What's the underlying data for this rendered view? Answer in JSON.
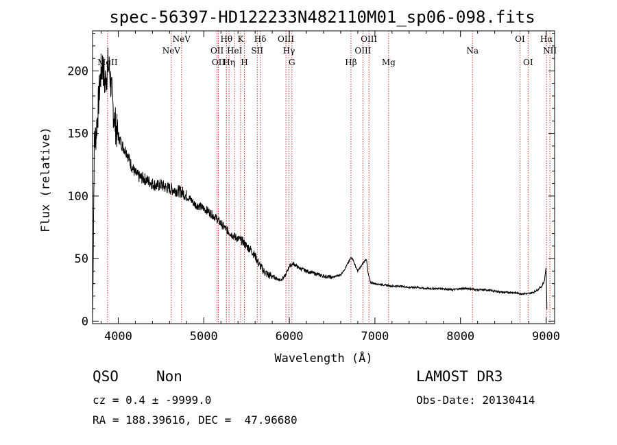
{
  "chart_data": {
    "type": "line",
    "title": "spec-56397-HD122233N482110M01_sp06-098.fits",
    "xlabel": "Wavelength (Å)",
    "ylabel": "Flux (relative)",
    "xlim": [
      3700,
      9100
    ],
    "ylim": [
      -2,
      232
    ],
    "xticks": [
      4000,
      5000,
      6000,
      7000,
      8000,
      9000
    ],
    "yticks": [
      0,
      50,
      100,
      150,
      200
    ],
    "series": [
      {
        "name": "spectrum",
        "x": [
          3700,
          3720,
          3740,
          3760,
          3780,
          3800,
          3820,
          3840,
          3860,
          3880,
          3900,
          3920,
          3940,
          3960,
          3980,
          4000,
          4050,
          4100,
          4150,
          4200,
          4250,
          4300,
          4350,
          4400,
          4450,
          4500,
          4550,
          4600,
          4650,
          4700,
          4750,
          4800,
          4850,
          4900,
          4950,
          5000,
          5050,
          5100,
          5150,
          5200,
          5250,
          5300,
          5350,
          5400,
          5450,
          5500,
          5550,
          5600,
          5650,
          5700,
          5750,
          5800,
          5850,
          5900,
          5950,
          6000,
          6050,
          6100,
          6200,
          6300,
          6400,
          6500,
          6600,
          6650,
          6700,
          6720,
          6740,
          6760,
          6800,
          6850,
          6880,
          6900,
          6920,
          6950,
          7000,
          7100,
          7200,
          7300,
          7400,
          7500,
          7600,
          7700,
          7800,
          7900,
          8000,
          8100,
          8200,
          8300,
          8400,
          8500,
          8600,
          8700,
          8750,
          8800,
          8850,
          8900,
          8950,
          8980,
          9000,
          9010
        ],
        "y": [
          0,
          140,
          150,
          165,
          185,
          200,
          205,
          190,
          195,
          205,
          200,
          185,
          170,
          160,
          152,
          148,
          140,
          135,
          125,
          118,
          115,
          114,
          112,
          110,
          108,
          109,
          107,
          106,
          105,
          104,
          103,
          100,
          97,
          93,
          92,
          90,
          88,
          85,
          82,
          78,
          74,
          71,
          68,
          66,
          64,
          60,
          57,
          52,
          45,
          40,
          37,
          36,
          34,
          33,
          36,
          44,
          46,
          43,
          40,
          38,
          36,
          35,
          37,
          42,
          48,
          51,
          50,
          46,
          40,
          45,
          48,
          50,
          38,
          31,
          30,
          29,
          28,
          28,
          27,
          27,
          26,
          26,
          26,
          25,
          26,
          26,
          25,
          25,
          24,
          23,
          23,
          22,
          22,
          22,
          23,
          25,
          28,
          32,
          43,
          10
        ]
      }
    ],
    "emission_lines": [
      {
        "label": "MgII",
        "wavelength": 3875,
        "row": 3
      },
      {
        "label": "NeV",
        "wavelength": 4620,
        "row": 2
      },
      {
        "label": "NeV",
        "wavelength": 4740,
        "row": 1
      },
      {
        "label": "OII",
        "wavelength": 5155,
        "row": 2
      },
      {
        "label": "OII",
        "wavelength": 5170,
        "row": 3
      },
      {
        "label": "Hθ",
        "wavelength": 5265,
        "row": 1
      },
      {
        "label": "Hη",
        "wavelength": 5295,
        "row": 3
      },
      {
        "label": "HeI",
        "wavelength": 5360,
        "row": 2
      },
      {
        "label": "K",
        "wavelength": 5430,
        "row": 1
      },
      {
        "label": "H",
        "wavelength": 5475,
        "row": 3
      },
      {
        "label": "SII",
        "wavelength": 5625,
        "row": 2
      },
      {
        "label": "Hδ",
        "wavelength": 5660,
        "row": 1
      },
      {
        "label": "OIII",
        "wavelength": 5960,
        "row": 1
      },
      {
        "label": "Hγ",
        "wavelength": 5995,
        "row": 2
      },
      {
        "label": "G",
        "wavelength": 6030,
        "row": 3
      },
      {
        "label": "Hβ",
        "wavelength": 6720,
        "row": 3
      },
      {
        "label": "OIII",
        "wavelength": 6860,
        "row": 2
      },
      {
        "label": "OIII",
        "wavelength": 6930,
        "row": 1
      },
      {
        "label": "Mg",
        "wavelength": 7160,
        "row": 3
      },
      {
        "label": "Na",
        "wavelength": 8140,
        "row": 2
      },
      {
        "label": "OI",
        "wavelength": 8695,
        "row": 1
      },
      {
        "label": "OI",
        "wavelength": 8790,
        "row": 3
      },
      {
        "label": "Hα",
        "wavelength": 9005,
        "row": 1
      },
      {
        "label": "NII",
        "wavelength": 9045,
        "row": 2
      }
    ]
  },
  "info": {
    "class": "QSO",
    "subclass": "Non",
    "survey": "LAMOST DR3",
    "redshift_line": "cz = 0.4 ± -9999.0",
    "obs_date": "Obs-Date: 20130414",
    "coords": "RA = 188.39616, DEC =  47.96680"
  },
  "colors": {
    "line": "#cc3333",
    "spectrum": "#000000",
    "axis": "#000000"
  }
}
